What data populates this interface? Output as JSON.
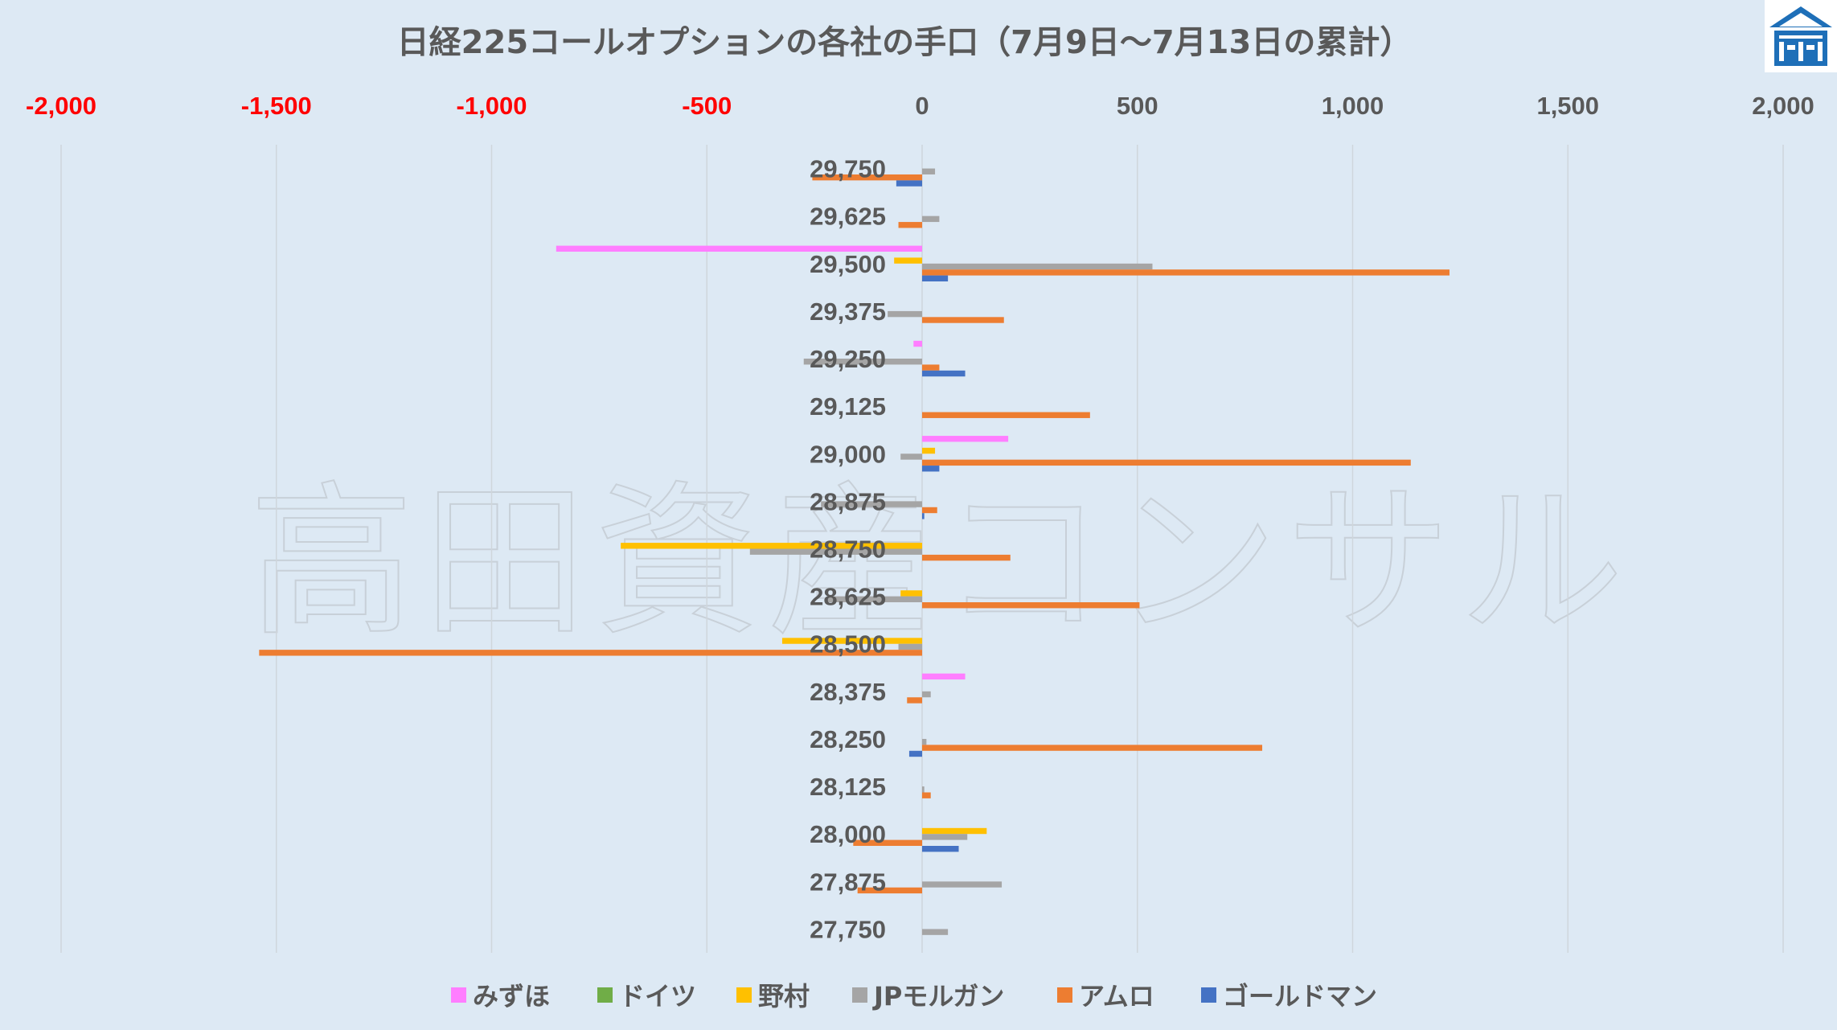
{
  "watermark": "高田資産コンサル",
  "chart_data": {
    "type": "bar",
    "orientation": "horizontal",
    "title": "日経225コールオプションの各社の手口（7月9日〜7月13日の累計）",
    "xlim": [
      -2000,
      2000
    ],
    "x_ticks": [
      "-2,000",
      "-1,500",
      "-1,000",
      "-500",
      "0",
      "500",
      "1,000",
      "1,500",
      "2,000"
    ],
    "x_tick_values": [
      -2000,
      -1500,
      -1000,
      -500,
      0,
      500,
      1000,
      1500,
      2000
    ],
    "grid": true,
    "legend_position": "bottom",
    "negative_tick_color": "#ff0000",
    "positive_tick_color": "#595959",
    "categories": [
      "29,750",
      "29,625",
      "29,500",
      "29,375",
      "29,250",
      "29,125",
      "29,000",
      "28,875",
      "28,750",
      "28,625",
      "28,500",
      "28,375",
      "28,250",
      "28,125",
      "28,000",
      "27,875",
      "27,750"
    ],
    "series": [
      {
        "name": "みずほ",
        "color": "#ff7eff",
        "values": [
          0,
          0,
          -850,
          0,
          -20,
          0,
          200,
          0,
          0,
          0,
          0,
          100,
          0,
          0,
          0,
          0,
          0
        ]
      },
      {
        "name": "ドイツ",
        "color": "#70ad47",
        "values": [
          0,
          0,
          0,
          0,
          0,
          0,
          0,
          0,
          0,
          0,
          0,
          0,
          0,
          0,
          0,
          0,
          0
        ]
      },
      {
        "name": "野村",
        "color": "#ffc000",
        "values": [
          0,
          0,
          -65,
          0,
          0,
          0,
          30,
          0,
          -700,
          -50,
          -325,
          0,
          0,
          0,
          150,
          0,
          0
        ]
      },
      {
        "name": "JPモルガン",
        "color": "#a5a5a5",
        "values": [
          30,
          40,
          535,
          -80,
          -275,
          0,
          -50,
          -235,
          -400,
          -220,
          -55,
          20,
          10,
          5,
          105,
          185,
          60
        ]
      },
      {
        "name": "アムロ",
        "color": "#ed7d31",
        "values": [
          -255,
          -55,
          1225,
          190,
          40,
          390,
          1135,
          35,
          205,
          505,
          -1540,
          -35,
          790,
          20,
          -160,
          -150,
          0
        ]
      },
      {
        "name": "ゴールドマン",
        "color": "#4472c4",
        "values": [
          -60,
          0,
          60,
          0,
          100,
          0,
          40,
          5,
          0,
          0,
          0,
          0,
          -30,
          0,
          85,
          0,
          0
        ]
      }
    ]
  }
}
